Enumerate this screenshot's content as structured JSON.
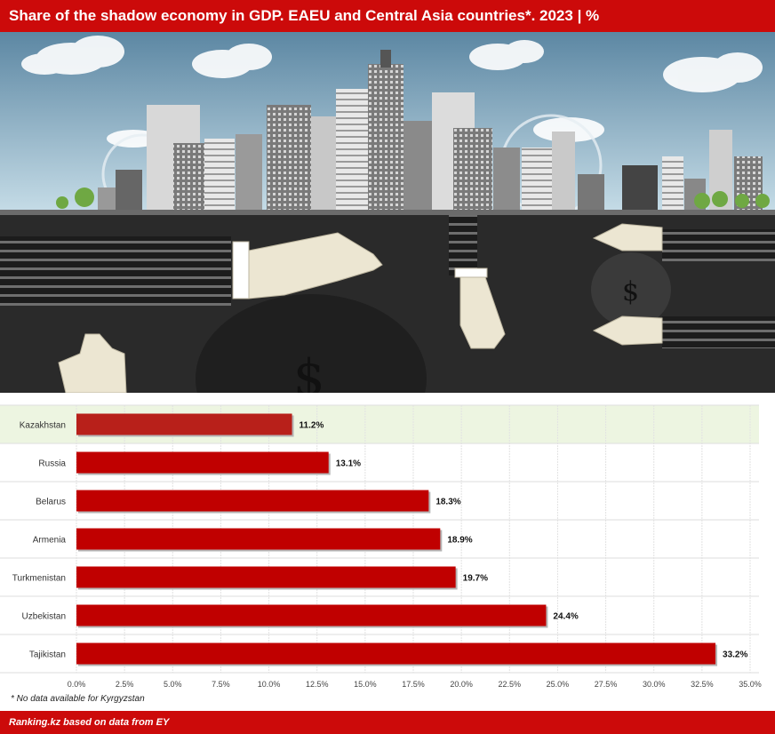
{
  "header": {
    "title": "Share of the shadow economy in GDP. EAEU and Central Asia countries*. 2023 | %"
  },
  "footer": {
    "footnote": "* No data available for Kyrgyzstan",
    "source": "Ranking.kz based on data from EY"
  },
  "colors": {
    "accent": "#cc0a0a",
    "bar": "#c00000",
    "bar_highlight": "#b8201a",
    "highlight_row": "#edf5e1"
  },
  "chart_data": {
    "type": "bar",
    "orientation": "horizontal",
    "title": "Share of the shadow economy in GDP. EAEU and Central Asia countries*. 2023 | %",
    "categories": [
      "Kazakhstan",
      "Russia",
      "Belarus",
      "Armenia",
      "Turkmenistan",
      "Uzbekistan",
      "Tajikistan"
    ],
    "values": [
      11.2,
      13.1,
      18.3,
      18.9,
      19.7,
      24.4,
      33.2
    ],
    "value_labels": [
      "11.2%",
      "13.1%",
      "18.3%",
      "18.9%",
      "19.7%",
      "24.4%",
      "33.2%"
    ],
    "highlighted_category": "Kazakhstan",
    "xlim": [
      0,
      35
    ],
    "xticks": [
      0,
      2.5,
      5,
      7.5,
      10,
      12.5,
      15,
      17.5,
      20,
      22.5,
      25,
      27.5,
      30,
      32.5,
      35
    ],
    "xtick_labels": [
      "0.0%",
      "2.5%",
      "5.0%",
      "7.5%",
      "10.0%",
      "12.5%",
      "15.0%",
      "17.5%",
      "20.0%",
      "22.5%",
      "25.0%",
      "27.5%",
      "30.0%",
      "32.5%",
      "35.0%"
    ],
    "grid": true,
    "xlabel": "",
    "ylabel": ""
  }
}
